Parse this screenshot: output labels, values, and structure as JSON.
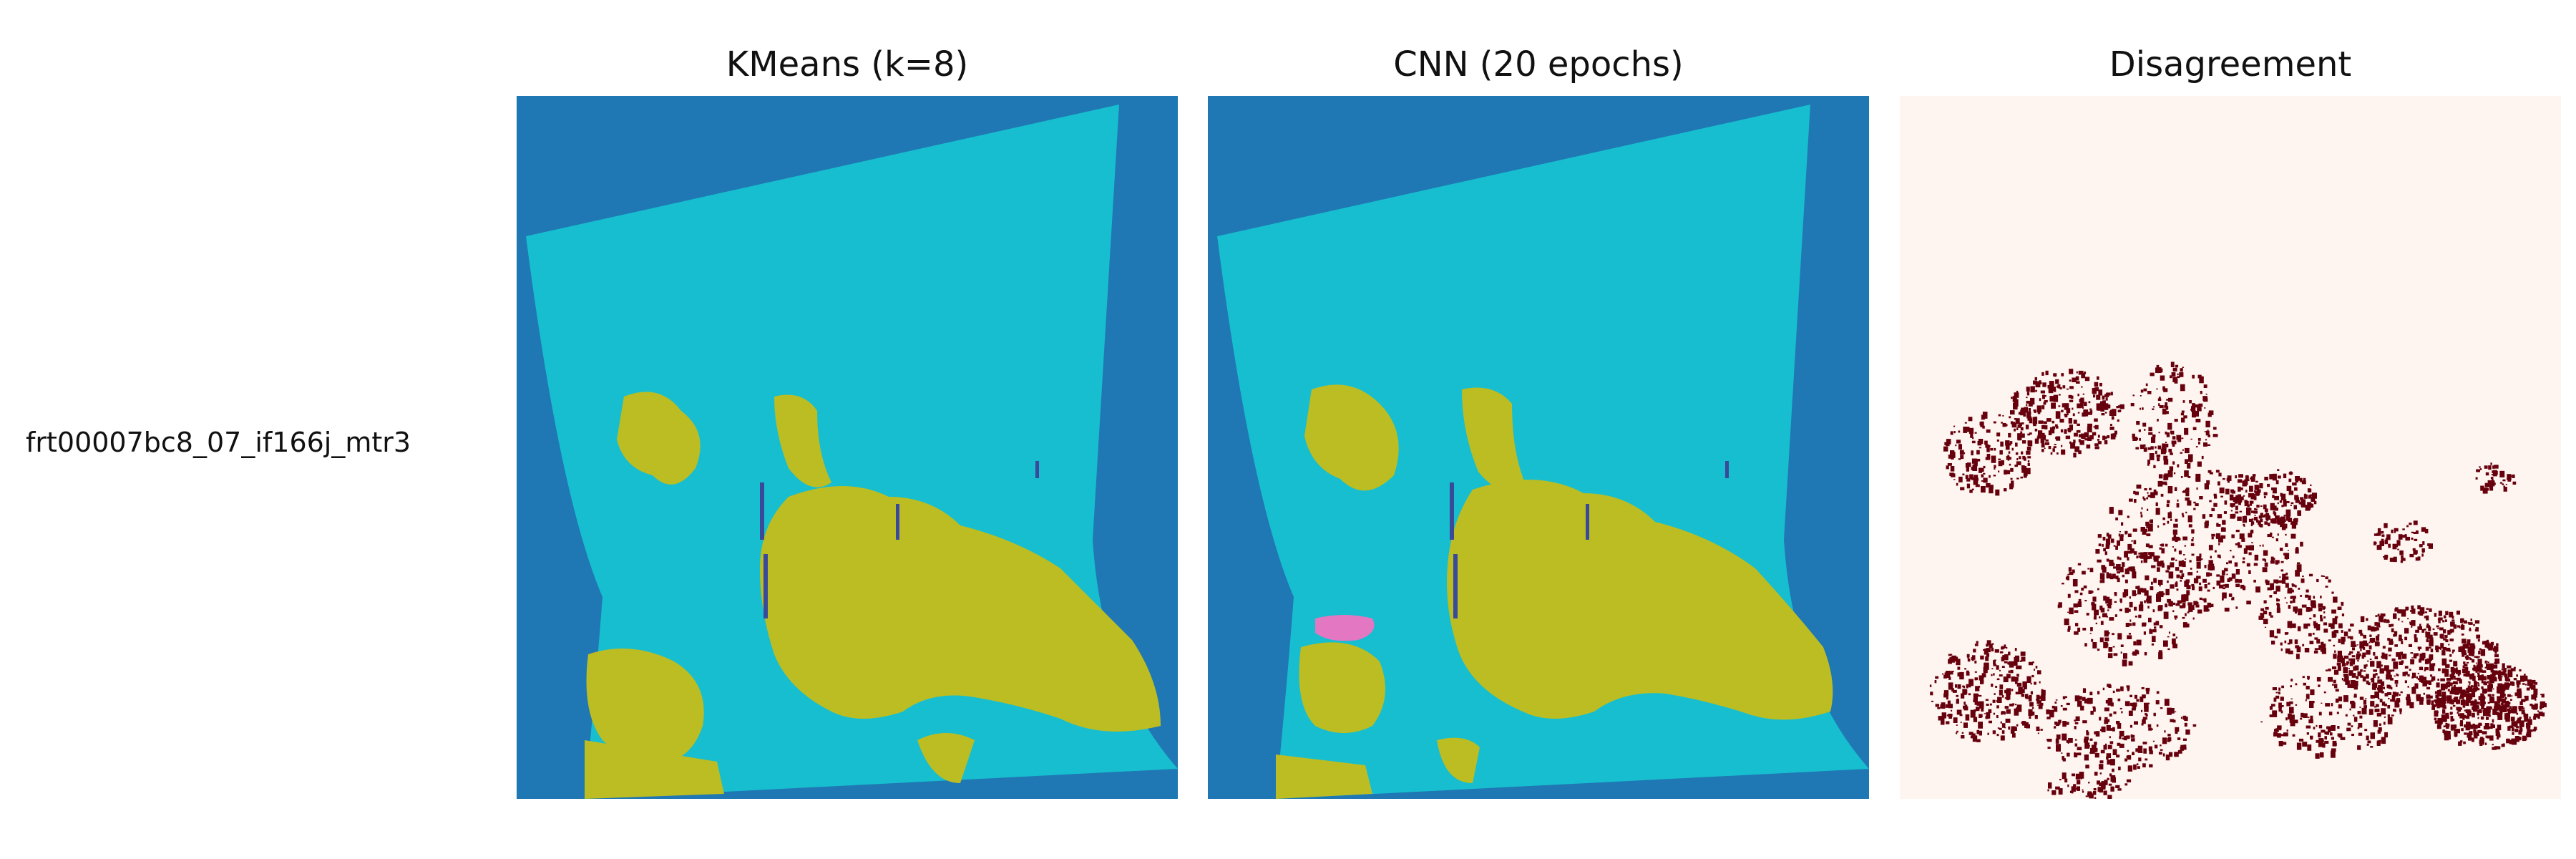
{
  "row_label": "frt00007bc8_07_if166j_mtr3",
  "panels": [
    {
      "title": "KMeans (k=8)"
    },
    {
      "title": "CNN (20 epochs)"
    },
    {
      "title": "Disagreement"
    }
  ],
  "colors": {
    "background_class": "#1f77b4",
    "surface_class": "#17becf",
    "feature_class": "#bcbd22",
    "minor_class": "#e377c2",
    "dark_class": "#3a4a9a",
    "disagreement_bg": "#fff5f0",
    "disagreement_mark": "#67000d"
  }
}
